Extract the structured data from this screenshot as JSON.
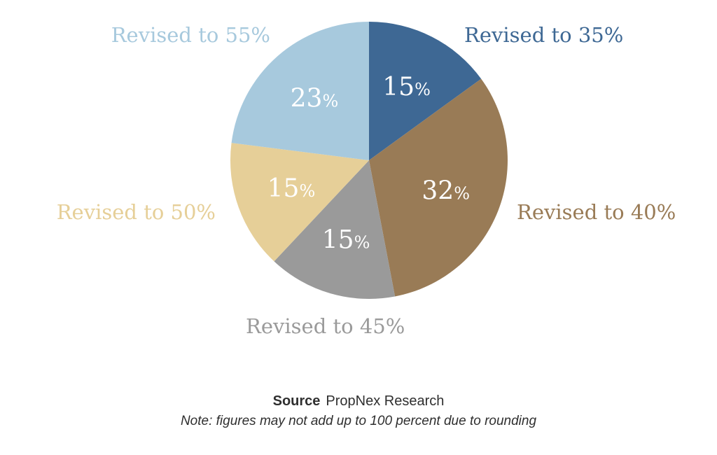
{
  "chart_data": {
    "type": "pie",
    "categories": [
      "Revised to 35%",
      "Revised to 40%",
      "Revised to 45%",
      "Revised to 50%",
      "Revised to 55%"
    ],
    "values": [
      15,
      32,
      15,
      15,
      23
    ],
    "value_labels": [
      "15",
      "32",
      "15",
      "15",
      "23"
    ],
    "value_suffix": "%",
    "colors": [
      "#3e6894",
      "#997b56",
      "#9a9a9a",
      "#e6cf98",
      "#a7c9dd"
    ],
    "start_angle_deg": 0,
    "direction": "clockwise",
    "legend": "none"
  },
  "footer": {
    "source_label": "Source",
    "source_value": "PropNex Research",
    "note": "Note: figures may not add up to 100 percent due to rounding"
  }
}
